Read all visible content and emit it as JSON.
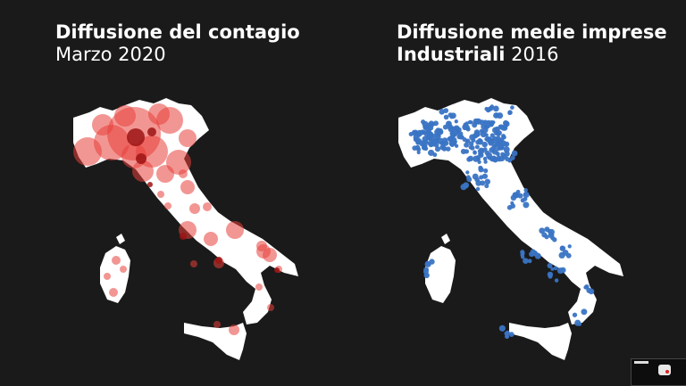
{
  "left_panel": {
    "title": "Diffusione del contagio",
    "subtitle": "Marzo 2020",
    "bubble_color": "#e8403a",
    "bubble_dark": "#9c1414"
  },
  "right_panel": {
    "title": "Diffusione medie imprese",
    "subtitle_bold": "Industriali",
    "subtitle_rest": " 2016",
    "dot_color": "#3a74c4"
  },
  "map_fill": "#ffffff"
}
